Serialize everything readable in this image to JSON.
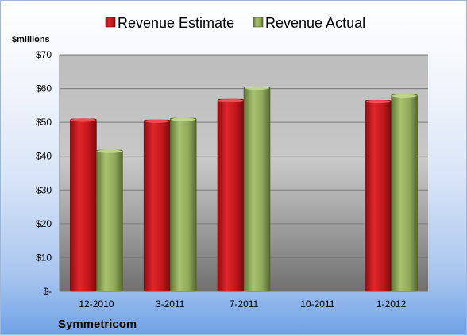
{
  "chart_data": {
    "type": "bar",
    "ylabel": "$millions",
    "categories": [
      "12-2010",
      "3-2011",
      "7-2011",
      "10-2011",
      "1-2012"
    ],
    "series": [
      {
        "name": "Revenue Estimate",
        "color": "#c0171c",
        "values": [
          51.0,
          50.7,
          56.8,
          null,
          56.5
        ]
      },
      {
        "name": "Revenue Actual",
        "color": "#8fa85a",
        "values": [
          41.8,
          51.2,
          60.5,
          null,
          58.2
        ]
      }
    ],
    "ylim": [
      0,
      70
    ],
    "yticks": [
      0,
      10,
      20,
      30,
      40,
      50,
      60,
      70
    ],
    "ytick_labels": [
      "$-",
      "$10",
      "$20",
      "$30",
      "$40",
      "$50",
      "$60",
      "$70"
    ],
    "grid": true,
    "legend_position": "top"
  },
  "footer": {
    "company": "Symmetricom"
  }
}
